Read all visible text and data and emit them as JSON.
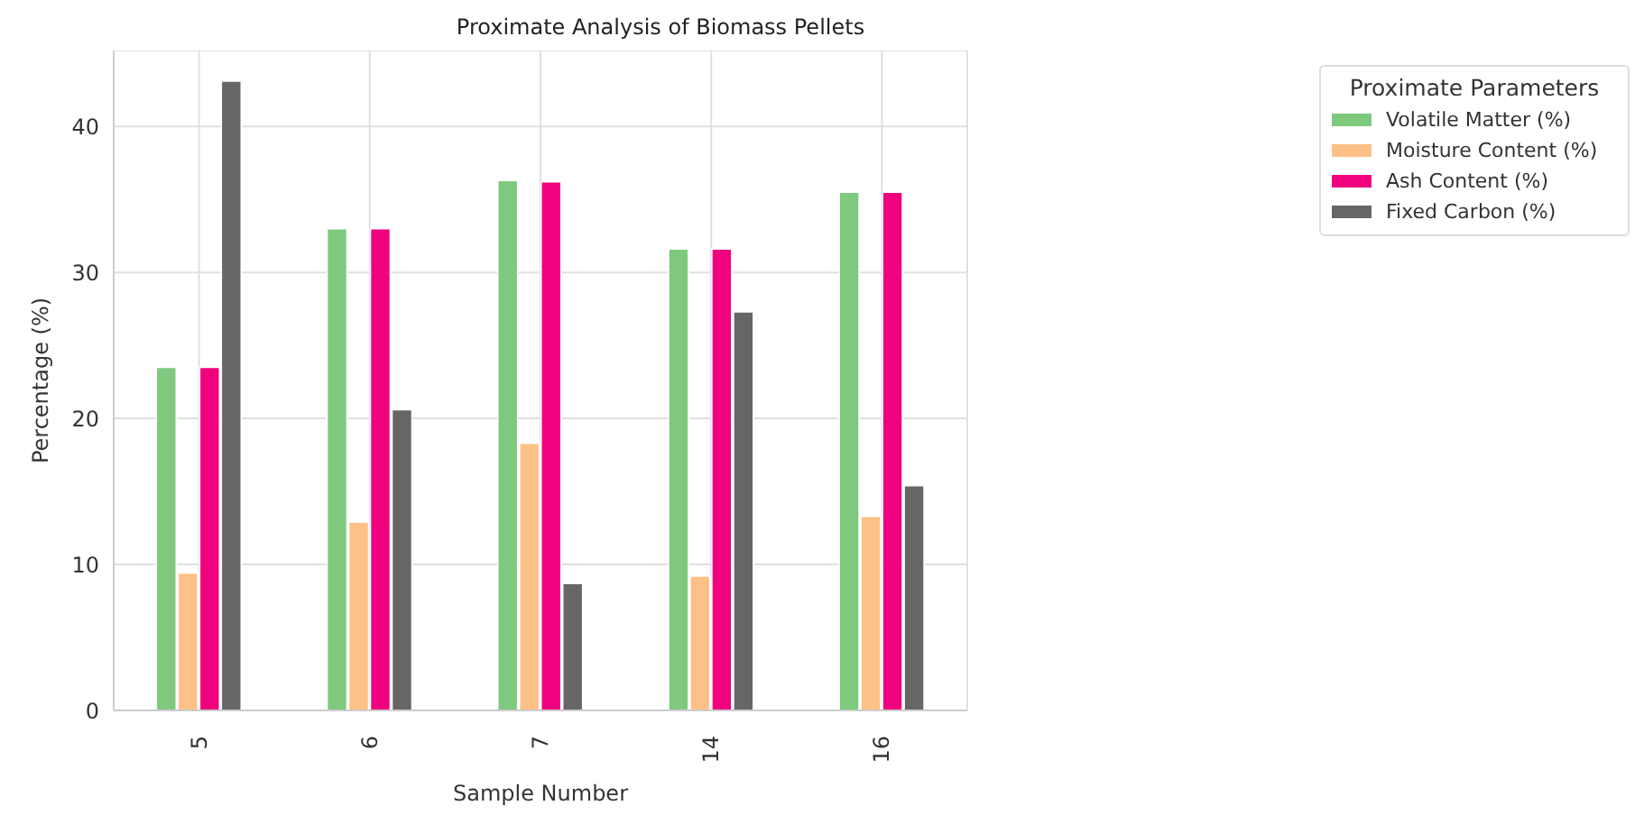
{
  "chart_data": {
    "type": "bar",
    "title": "Proximate Analysis of Biomass Pellets",
    "xlabel": "Sample Number",
    "ylabel": "Percentage (%)",
    "legend_title": "Proximate Parameters",
    "categories": [
      "5",
      "6",
      "7",
      "14",
      "16"
    ],
    "series": [
      {
        "name": "Volatile Matter (%)",
        "color": "#7fc97f",
        "values": [
          23.5,
          33.0,
          36.3,
          31.6,
          35.5
        ]
      },
      {
        "name": "Moisture Content (%)",
        "color": "#fdc086",
        "values": [
          9.4,
          12.9,
          18.3,
          9.2,
          13.3
        ]
      },
      {
        "name": "Ash Content (%)",
        "color": "#f0027f",
        "values": [
          23.5,
          33.0,
          36.2,
          31.6,
          35.5
        ]
      },
      {
        "name": "Fixed Carbon (%)",
        "color": "#666666",
        "values": [
          43.1,
          20.6,
          8.7,
          27.3,
          15.4
        ]
      }
    ],
    "ylim": [
      0,
      45.2
    ],
    "yticks": [
      0,
      10,
      20,
      30,
      40
    ],
    "grid": true,
    "legend": "top right"
  }
}
